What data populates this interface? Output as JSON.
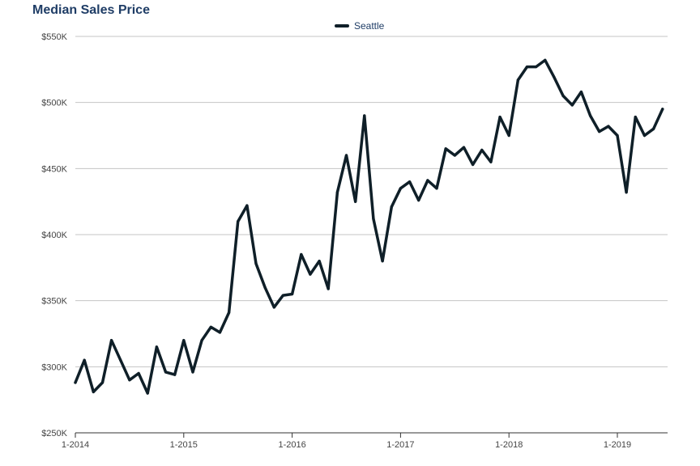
{
  "colors": {
    "line": "#0f1f28",
    "grid": "#c4c4c4",
    "title": "#1f3d66",
    "axis": "#333333"
  },
  "chart_data": {
    "type": "line",
    "title": "Median Sales Price",
    "xlabel": "",
    "ylabel": "",
    "legend_position": "top-center",
    "grid": true,
    "ylim": [
      250000,
      550000
    ],
    "y_ticks": [
      {
        "value": 550000,
        "label": "$550K"
      },
      {
        "value": 500000,
        "label": "$500K"
      },
      {
        "value": 450000,
        "label": "$450K"
      },
      {
        "value": 400000,
        "label": "$400K"
      },
      {
        "value": 350000,
        "label": "$350K"
      },
      {
        "value": 300000,
        "label": "$300K"
      },
      {
        "value": 250000,
        "label": "$250K"
      }
    ],
    "x_ticks": [
      "1-2014",
      "1-2015",
      "1-2016",
      "1-2017",
      "1-2018",
      "1-2019"
    ],
    "x": [
      "2014-01",
      "2014-02",
      "2014-03",
      "2014-04",
      "2014-05",
      "2014-06",
      "2014-07",
      "2014-08",
      "2014-09",
      "2014-10",
      "2014-11",
      "2014-12",
      "2015-01",
      "2015-02",
      "2015-03",
      "2015-04",
      "2015-05",
      "2015-06",
      "2015-07",
      "2015-08",
      "2015-09",
      "2015-10",
      "2015-11",
      "2015-12",
      "2016-01",
      "2016-02",
      "2016-03",
      "2016-04",
      "2016-05",
      "2016-06",
      "2016-07",
      "2016-08",
      "2016-09",
      "2016-10",
      "2016-11",
      "2016-12",
      "2017-01",
      "2017-02",
      "2017-03",
      "2017-04",
      "2017-05",
      "2017-06",
      "2017-07",
      "2017-08",
      "2017-09",
      "2017-10",
      "2017-11",
      "2017-12",
      "2018-01",
      "2018-02",
      "2018-03",
      "2018-04",
      "2018-05",
      "2018-06",
      "2018-07",
      "2018-08",
      "2018-09",
      "2018-10",
      "2018-11",
      "2018-12",
      "2019-01",
      "2019-02",
      "2019-03",
      "2019-04",
      "2019-05",
      "2019-06"
    ],
    "series": [
      {
        "name": "Seattle",
        "values": [
          288000,
          305000,
          281000,
          288000,
          320000,
          305000,
          290000,
          295000,
          280000,
          315000,
          296000,
          294000,
          320000,
          296000,
          320000,
          330000,
          326000,
          341000,
          410000,
          422000,
          378000,
          360000,
          345000,
          354000,
          355000,
          385000,
          370000,
          380000,
          359000,
          432000,
          460000,
          425000,
          490000,
          412000,
          380000,
          421000,
          435000,
          440000,
          426000,
          441000,
          435000,
          465000,
          460000,
          466000,
          453000,
          464000,
          455000,
          489000,
          475000,
          517000,
          527000,
          527000,
          532000,
          519000,
          505000,
          498000,
          508000,
          490000,
          478000,
          482000,
          475000,
          432000,
          489000,
          475000,
          480000,
          495000
        ]
      }
    ]
  }
}
